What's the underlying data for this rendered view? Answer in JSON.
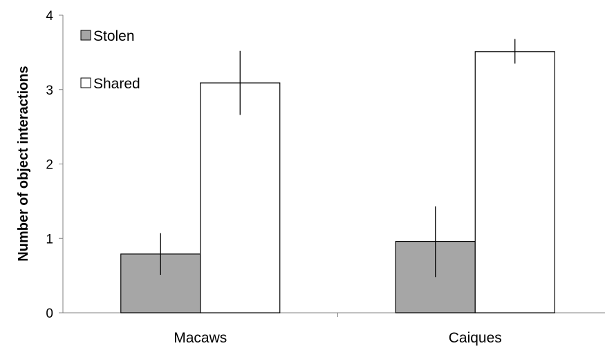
{
  "chart_data": {
    "type": "bar",
    "title": "",
    "xlabel": "",
    "ylabel": "Number of object interactions",
    "categories": [
      "Macaws",
      "Caiques"
    ],
    "series": [
      {
        "name": "Stolen",
        "values": [
          0.79,
          0.96
        ],
        "error_low": [
          0.51,
          0.48
        ],
        "error_high": [
          1.07,
          1.43
        ],
        "color": "#a6a6a6"
      },
      {
        "name": "Shared",
        "values": [
          3.09,
          3.51
        ],
        "error_low": [
          2.66,
          3.35
        ],
        "error_high": [
          3.52,
          3.68
        ],
        "color": "#ffffff"
      }
    ],
    "ylim": [
      0,
      4
    ],
    "yticks": [
      0,
      1,
      2,
      3,
      4
    ],
    "grid": false,
    "legend": "top-left"
  }
}
